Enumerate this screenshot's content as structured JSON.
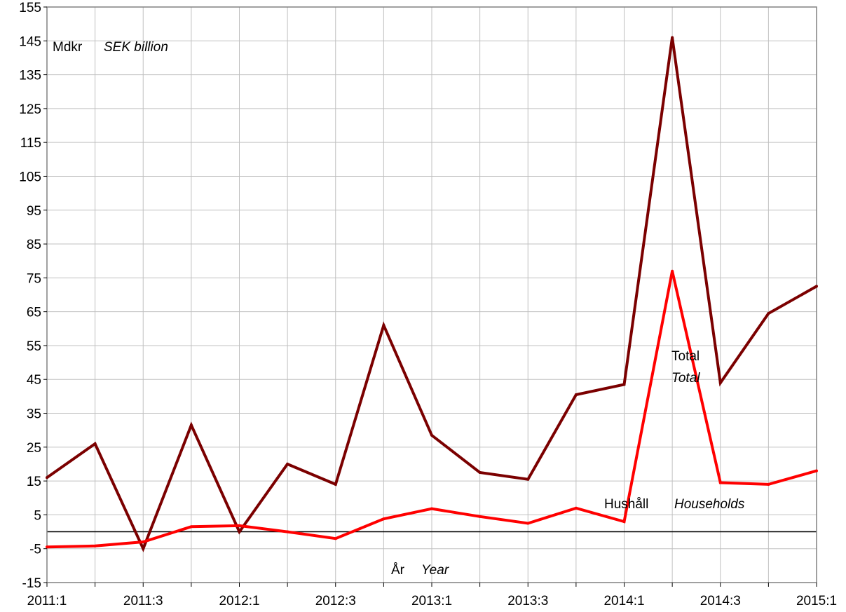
{
  "chart_data": {
    "type": "line",
    "unit_label": {
      "sv": "Mdkr",
      "en": "SEK billion"
    },
    "xlabel": {
      "sv": "År",
      "en": "Year"
    },
    "ylim": [
      -15,
      155
    ],
    "y_ticks": [
      "-15",
      "-5",
      "5",
      "15",
      "25",
      "35",
      "45",
      "55",
      "65",
      "75",
      "85",
      "95",
      "105",
      "115",
      "125",
      "135",
      "145",
      "155"
    ],
    "x": [
      "2011:1",
      "2011:2",
      "2011:3",
      "2011:4",
      "2012:1",
      "2012:2",
      "2012:3",
      "2012:4",
      "2013:1",
      "2013:2",
      "2013:3",
      "2013:4",
      "2014:1",
      "2014:2",
      "2014:3",
      "2014:4",
      "2015:1"
    ],
    "x_tick_labels": [
      "2011:1",
      "",
      "2011:3",
      "",
      "2012:1",
      "",
      "2012:3",
      "",
      "2013:1",
      "",
      "2013:3",
      "",
      "2014:1",
      "",
      "2014:3",
      "",
      "2015:1"
    ],
    "grid": true,
    "series": [
      {
        "name": "Total",
        "name_en": "Total",
        "color": "#7b0000",
        "values": [
          16,
          26,
          -5,
          31.5,
          0,
          20,
          14,
          61,
          28.5,
          17.5,
          15.5,
          40.5,
          43.5,
          146,
          44,
          64.5,
          72.5
        ]
      },
      {
        "name": "Hushåll",
        "name_en": "Households",
        "color": "#ff0000",
        "values": [
          -4.5,
          -4.2,
          -3,
          1.5,
          1.8,
          0,
          -2,
          3.8,
          6.8,
          4.5,
          2.5,
          7,
          3,
          77,
          14.5,
          14,
          18
        ]
      }
    ]
  }
}
